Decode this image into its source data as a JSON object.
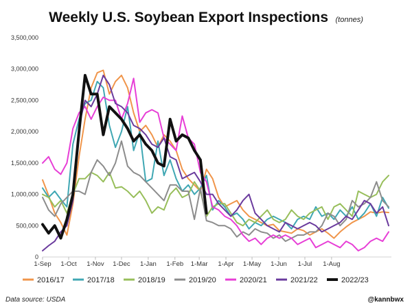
{
  "header": {
    "title": "Weekly U.S. Soybean Export Inspections",
    "subtitle": "(tonnes)"
  },
  "footer": {
    "source": "Data source: USDA",
    "handle": "@kannbwx"
  },
  "chart_data": {
    "type": "line",
    "title": "Weekly U.S. Soybean Export Inspections",
    "subtitle": "(tonnes)",
    "xlabel": "",
    "ylabel": "",
    "ylim": [
      0,
      3500000
    ],
    "yticks": [
      0,
      500000,
      1000000,
      1500000,
      2000000,
      2500000,
      3000000,
      3500000
    ],
    "ytick_labels": [
      "0",
      "500,000",
      "1,000,000",
      "1,500,000",
      "2,000,000",
      "2,500,000",
      "3,000,000",
      "3,500,000"
    ],
    "xtick_labels": [
      "1-Sep",
      "1-Oct",
      "1-Nov",
      "1-Dec",
      "1-Jan",
      "1-Feb",
      "1-Mar",
      "1-Apr",
      "1-May",
      "1-Jun",
      "1-Jul",
      "1-Aug"
    ],
    "x_unit": "weeks from 1-Sep",
    "grid": false,
    "legend_position": "bottom",
    "series": [
      {
        "name": "2016/17",
        "color": "#F0954A",
        "width": 2,
        "values": [
          1230000,
          980000,
          700000,
          550000,
          350000,
          850000,
          1600000,
          2200000,
          2700000,
          2940000,
          2980000,
          2600000,
          2800000,
          2900000,
          2700000,
          2300000,
          2000000,
          2100000,
          1950000,
          1750000,
          1950000,
          1850000,
          1700000,
          1400000,
          1250000,
          1150000,
          1050000,
          1400000,
          1250000,
          950000,
          800000,
          850000,
          900000,
          750000,
          650000,
          600000,
          550000,
          500000,
          520000,
          420000,
          400000,
          380000,
          450000,
          420000,
          350000,
          400000,
          450000,
          380000,
          300000,
          400000,
          480000,
          550000,
          600000,
          650000,
          720000,
          700000,
          720000,
          710000
        ]
      },
      {
        "name": "2017/18",
        "color": "#3FA7B3",
        "width": 2,
        "values": [
          1100000,
          950000,
          1050000,
          920000,
          800000,
          1800000,
          2200000,
          2450000,
          2500000,
          2800000,
          2700000,
          2100000,
          1750000,
          2000000,
          2400000,
          1700000,
          2000000,
          1200000,
          1250000,
          1850000,
          1300000,
          1550000,
          1250000,
          1050000,
          1150000,
          1000000,
          1100000,
          1300000,
          750000,
          900000,
          800000,
          650000,
          700000,
          600000,
          450000,
          550000,
          500000,
          600000,
          650000,
          600000,
          550000,
          450000,
          600000,
          650000,
          600000,
          800000,
          650000,
          700000,
          600000,
          750000,
          650000,
          800000,
          600000,
          700000,
          850000,
          650000,
          950000,
          780000
        ]
      },
      {
        "name": "2018/19",
        "color": "#97BE5A",
        "width": 2,
        "values": [
          1000000,
          950000,
          800000,
          900000,
          700000,
          1000000,
          1250000,
          1250000,
          1350000,
          1300000,
          1200000,
          1350000,
          1100000,
          1120000,
          1050000,
          950000,
          1050000,
          900000,
          700000,
          800000,
          750000,
          1000000,
          1100000,
          950000,
          1000000,
          1200000,
          1050000,
          650000,
          800000,
          850000,
          850000,
          700000,
          550000,
          500000,
          600000,
          550000,
          650000,
          750000,
          600000,
          550000,
          600000,
          750000,
          650000,
          600000,
          700000,
          750000,
          800000,
          600000,
          800000,
          850000,
          750000,
          650000,
          1050000,
          1000000,
          950000,
          1000000,
          1200000,
          1300000
        ]
      },
      {
        "name": "2019/20",
        "color": "#8C8C8C",
        "width": 2,
        "values": [
          950000,
          750000,
          650000,
          850000,
          950000,
          1050000,
          1050000,
          1000000,
          1350000,
          1550000,
          1450000,
          1300000,
          1500000,
          1850000,
          1450000,
          1350000,
          1300000,
          1200000,
          1100000,
          1000000,
          900000,
          1150000,
          1150000,
          1050000,
          1050000,
          600000,
          1100000,
          580000,
          550000,
          500000,
          500000,
          450000,
          320000,
          400000,
          350000,
          450000,
          400000,
          380000,
          300000,
          350000,
          250000,
          300000,
          350000,
          350000,
          400000,
          400000,
          500000,
          700000,
          650000,
          500000,
          600000,
          900000,
          800000,
          850000,
          950000,
          1200000,
          900000,
          800000
        ]
      },
      {
        "name": "2020/21",
        "color": "#E73ED6",
        "width": 2,
        "values": [
          1500000,
          1600000,
          1400000,
          1320000,
          1500000,
          2050000,
          2300000,
          2400000,
          2200000,
          2400000,
          2550000,
          2500000,
          2500000,
          2200000,
          2450000,
          2850000,
          2150000,
          2300000,
          2350000,
          2300000,
          1900000,
          1800000,
          1700000,
          2250000,
          1900000,
          1800000,
          1350000,
          1200000,
          800000,
          750000,
          650000,
          600000,
          500000,
          350000,
          250000,
          300000,
          200000,
          300000,
          350000,
          300000,
          350000,
          300000,
          200000,
          250000,
          300000,
          150000,
          200000,
          250000,
          200000,
          150000,
          250000,
          200000,
          100000,
          150000,
          250000,
          300000,
          250000,
          400000
        ]
      },
      {
        "name": "2021/22",
        "color": "#6A3A9D",
        "width": 2,
        "values": [
          100000,
          180000,
          250000,
          400000,
          500000,
          900000,
          2100000,
          2500000,
          2400000,
          2600000,
          2900000,
          2750000,
          2450000,
          2400000,
          2300000,
          2100000,
          2050000,
          1950000,
          1800000,
          1750000,
          1900000,
          1600000,
          1550000,
          1250000,
          1300000,
          1350000,
          1200000,
          1000000,
          1000000,
          850000,
          750000,
          650000,
          750000,
          900000,
          1000000,
          700000,
          600000,
          500000,
          450000,
          400000,
          550000,
          500000,
          450000,
          500000,
          550000,
          500000,
          400000,
          450000,
          500000,
          550000,
          650000,
          600000,
          750000,
          900000,
          850000,
          700000,
          800000,
          500000
        ]
      },
      {
        "name": "2022/23",
        "color": "#111111",
        "width": 4,
        "values": [
          520000,
          380000,
          500000,
          300000,
          600000,
          1000000,
          2000000,
          2900000,
          2600000,
          2600000,
          1950000,
          2400000,
          2300000,
          2200000,
          2050000,
          1850000,
          1950000,
          1800000,
          1700000,
          1500000,
          1450000,
          2200000,
          1850000,
          1950000,
          1900000,
          1700000,
          1550000,
          700000
        ]
      }
    ]
  }
}
